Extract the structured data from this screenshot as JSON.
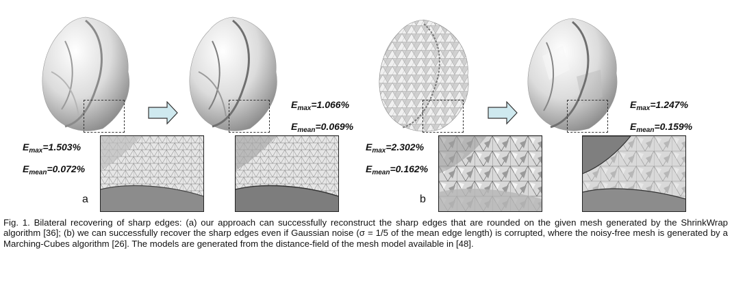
{
  "panels": {
    "a": {
      "label": "a",
      "input_metrics": {
        "E": "E",
        "max_sub": "max",
        "max_value": "=1.503%",
        "mean_sub": "mean",
        "mean_value": "=0.072%"
      },
      "result_metrics": {
        "E": "E",
        "max_sub": "max",
        "max_value": "=1.066%",
        "mean_sub": "mean",
        "mean_value": "=0.069%"
      }
    },
    "b": {
      "label": "b",
      "input_metrics": {
        "E": "E",
        "max_sub": "max",
        "max_value": "=2.302%",
        "mean_sub": "mean",
        "mean_value": "=0.162%"
      },
      "result_metrics": {
        "E": "E",
        "max_sub": "max",
        "max_value": "=1.247%",
        "mean_sub": "mean",
        "mean_value": "=0.159%"
      }
    }
  },
  "caption": {
    "text": "Fig. 1. Bilateral recovering of sharp edges: (a) our approach can successfully reconstruct the sharp edges that are rounded on the given mesh generated by the ShrinkWrap algorithm [36]; (b) we can successfully recover the sharp edges even if Gaussian noise (σ = 1/5 of the mean edge length) is corrupted, where the noisy-free mesh is generated by a Marching-Cubes algorithm [26]. The models are generated from the distance-field of the mesh model available in [48]."
  },
  "colors": {
    "arrow_fill": "#cfe9ef",
    "arrow_stroke": "#333333",
    "mesh_light": "#f2f2f2",
    "mesh_dark": "#6a6a6a"
  }
}
